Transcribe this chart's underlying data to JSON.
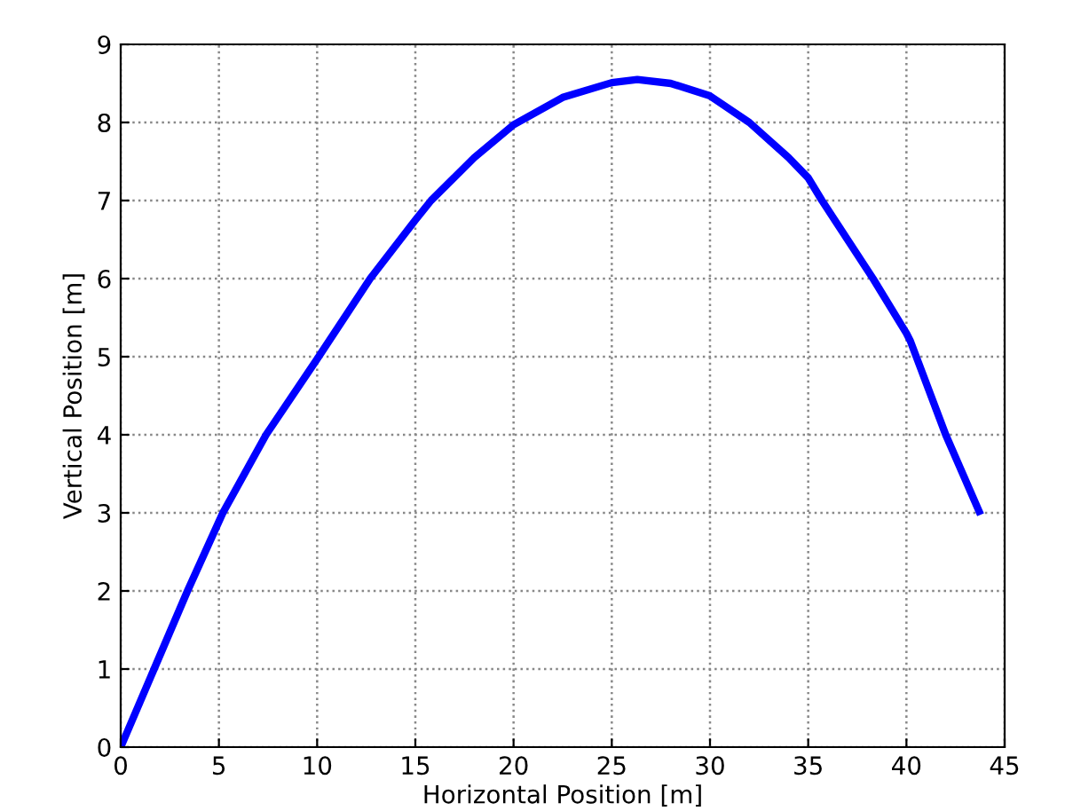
{
  "chart_data": {
    "type": "line",
    "xlabel": "Horizontal Position [m]",
    "ylabel": "Vertical Position [m]",
    "xlim": [
      0,
      45
    ],
    "ylim": [
      0,
      9
    ],
    "xticks": [
      0,
      5,
      10,
      15,
      20,
      25,
      30,
      35,
      40,
      45
    ],
    "yticks": [
      0,
      1,
      2,
      3,
      4,
      5,
      6,
      7,
      8,
      9
    ],
    "grid": true,
    "line_style": "solid",
    "series": [
      {
        "color": "#0000ff",
        "x": [
          0,
          1.7,
          3.4,
          5.2,
          7.4,
          10,
          12.7,
          15,
          15.8,
          18,
          20,
          22.5,
          25,
          26.3,
          28,
          30,
          32,
          34,
          35,
          35.7,
          37,
          38.3,
          40,
          40.2,
          42,
          43.7
        ],
        "values": [
          0,
          1,
          2,
          3,
          4,
          4.97,
          6,
          6.75,
          7,
          7.55,
          7.97,
          8.32,
          8.51,
          8.55,
          8.5,
          8.34,
          8.0,
          7.55,
          7.29,
          7,
          6.5,
          6,
          5.3,
          5.2,
          4,
          3.02
        ]
      }
    ]
  }
}
